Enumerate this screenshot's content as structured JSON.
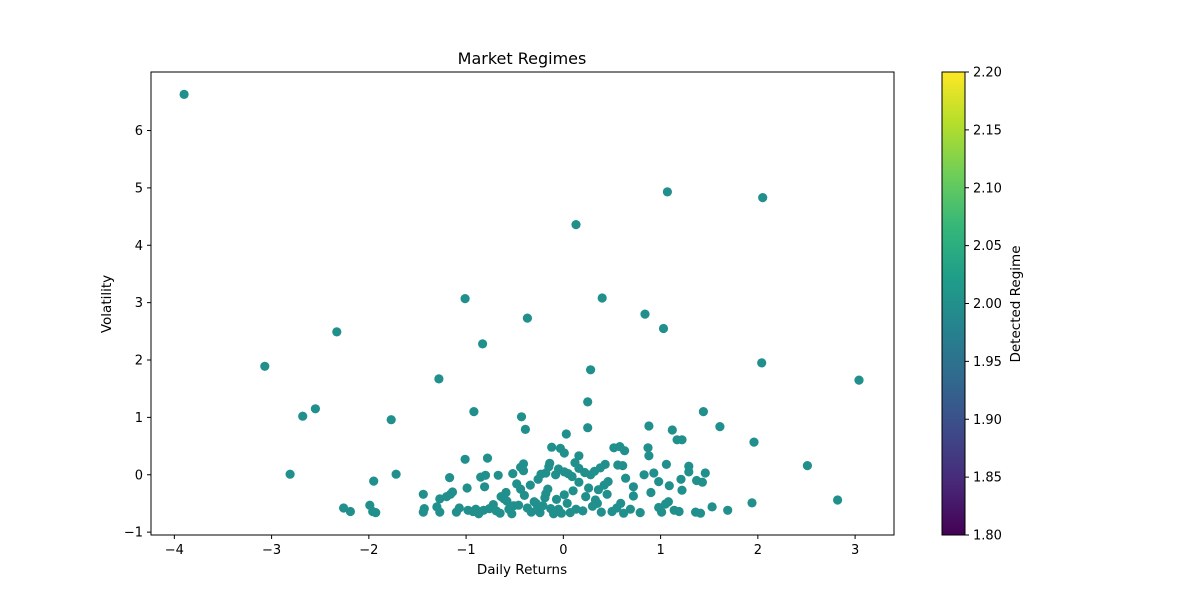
{
  "chart_data": {
    "type": "scatter",
    "title": "Market Regimes",
    "xlabel": "Daily Returns",
    "ylabel": "Volatility",
    "xlim": [
      -4.24,
      3.4
    ],
    "ylim": [
      -1.05,
      7.02
    ],
    "xticks": [
      -4,
      -3,
      -2,
      -1,
      0,
      1,
      2,
      3
    ],
    "xtick_labels": [
      "−4",
      "−3",
      "−2",
      "−1",
      "0",
      "1",
      "2",
      "3"
    ],
    "yticks": [
      -1,
      0,
      1,
      2,
      3,
      4,
      5,
      6
    ],
    "ytick_labels": [
      "−1",
      "0",
      "1",
      "2",
      "3",
      "4",
      "5",
      "6"
    ],
    "grid": false,
    "point_color": "#21908d",
    "colorbar": {
      "label": "Detected Regime",
      "range": [
        1.8,
        2.2
      ],
      "ticks": [
        1.8,
        1.85,
        1.9,
        1.95,
        2.0,
        2.05,
        2.1,
        2.15,
        2.2
      ],
      "tick_labels": [
        "1.80",
        "1.85",
        "1.90",
        "1.95",
        "2.00",
        "2.05",
        "2.10",
        "2.15",
        "2.20"
      ],
      "colormap": "viridis",
      "stops": [
        "#440154",
        "#482878",
        "#3e4989",
        "#31688e",
        "#26828e",
        "#1f9e89",
        "#35b779",
        "#6ece58",
        "#b5de2b",
        "#fde725"
      ]
    },
    "points": [
      [
        -3.9,
        6.63
      ],
      [
        1.07,
        4.93
      ],
      [
        2.05,
        4.83
      ],
      [
        0.13,
        4.36
      ],
      [
        -1.01,
        3.07
      ],
      [
        0.4,
        3.08
      ],
      [
        0.84,
        2.8
      ],
      [
        -0.37,
        2.73
      ],
      [
        1.03,
        2.55
      ],
      [
        -2.33,
        2.49
      ],
      [
        -0.83,
        2.28
      ],
      [
        -3.07,
        1.89
      ],
      [
        2.04,
        1.95
      ],
      [
        0.28,
        1.83
      ],
      [
        -1.28,
        1.67
      ],
      [
        3.04,
        1.65
      ],
      [
        -2.55,
        1.15
      ],
      [
        -2.68,
        1.02
      ],
      [
        -1.77,
        0.96
      ],
      [
        -0.92,
        1.1
      ],
      [
        -0.43,
        1.01
      ],
      [
        1.44,
        1.1
      ],
      [
        0.25,
        1.27
      ],
      [
        -0.39,
        0.79
      ],
      [
        1.61,
        0.84
      ],
      [
        0.88,
        0.85
      ],
      [
        1.12,
        0.78
      ],
      [
        0.25,
        0.82
      ],
      [
        1.96,
        0.57
      ],
      [
        0.03,
        0.71
      ],
      [
        1.17,
        0.61
      ],
      [
        1.22,
        0.61
      ],
      [
        -0.12,
        0.48
      ],
      [
        -0.03,
        0.46
      ],
      [
        0.52,
        0.47
      ],
      [
        0.58,
        0.49
      ],
      [
        0.63,
        0.42
      ],
      [
        0.87,
        0.47
      ],
      [
        0.88,
        0.33
      ],
      [
        2.51,
        0.16
      ],
      [
        -1.01,
        0.27
      ],
      [
        -0.78,
        0.29
      ],
      [
        0.16,
        0.33
      ],
      [
        0.01,
        0.38
      ],
      [
        -2.81,
        0.01
      ],
      [
        -1.72,
        0.01
      ],
      [
        -1.95,
        -0.11
      ],
      [
        -0.99,
        -0.23
      ],
      [
        -1.17,
        -0.05
      ],
      [
        -0.85,
        -0.04
      ],
      [
        -0.8,
        -0.01
      ],
      [
        -0.81,
        -0.21
      ],
      [
        -0.67,
        -0.01
      ],
      [
        -0.52,
        0.02
      ],
      [
        -0.44,
        0.13
      ],
      [
        -0.41,
        0.07
      ],
      [
        -0.41,
        0.19
      ],
      [
        -0.26,
        -0.08
      ],
      [
        -0.23,
        0.01
      ],
      [
        -0.18,
        0.03
      ],
      [
        -0.15,
        0.14
      ],
      [
        -0.14,
        0.2
      ],
      [
        -0.08,
        0.0
      ],
      [
        -0.05,
        0.1
      ],
      [
        0.01,
        0.05
      ],
      [
        0.05,
        0.02
      ],
      [
        0.09,
        -0.03
      ],
      [
        0.12,
        0.21
      ],
      [
        0.16,
        0.11
      ],
      [
        0.22,
        0.04
      ],
      [
        0.28,
        0.0
      ],
      [
        0.32,
        0.06
      ],
      [
        0.38,
        0.12
      ],
      [
        0.43,
        0.18
      ],
      [
        0.46,
        -0.12
      ],
      [
        0.56,
        0.17
      ],
      [
        0.61,
        0.16
      ],
      [
        0.64,
        -0.06
      ],
      [
        0.72,
        -0.21
      ],
      [
        0.83,
        0.0
      ],
      [
        0.93,
        0.03
      ],
      [
        0.98,
        -0.12
      ],
      [
        1.06,
        0.18
      ],
      [
        1.09,
        -0.19
      ],
      [
        1.21,
        -0.08
      ],
      [
        1.29,
        0.15
      ],
      [
        1.29,
        0.05
      ],
      [
        1.43,
        -0.13
      ],
      [
        1.46,
        0.03
      ],
      [
        1.37,
        -0.1
      ],
      [
        -1.44,
        -0.34
      ],
      [
        -1.43,
        -0.59
      ],
      [
        -1.44,
        -0.65
      ],
      [
        -1.3,
        -0.56
      ],
      [
        -1.27,
        -0.65
      ],
      [
        -1.27,
        -0.42
      ],
      [
        -1.2,
        -0.38
      ],
      [
        -1.16,
        -0.34
      ],
      [
        -1.14,
        -0.3
      ],
      [
        -1.1,
        -0.65
      ],
      [
        -1.07,
        -0.58
      ],
      [
        -0.98,
        -0.62
      ],
      [
        -0.93,
        -0.64
      ],
      [
        -0.9,
        -0.6
      ],
      [
        -0.87,
        -0.68
      ],
      [
        -0.82,
        -0.62
      ],
      [
        -0.76,
        -0.59
      ],
      [
        -0.69,
        -0.63
      ],
      [
        -0.65,
        -0.67
      ],
      [
        -0.61,
        -0.42
      ],
      [
        -0.59,
        -0.31
      ],
      [
        -0.56,
        -0.6
      ],
      [
        -0.53,
        -0.68
      ],
      [
        -0.51,
        -0.54
      ],
      [
        -0.48,
        -0.16
      ],
      [
        -0.44,
        -0.25
      ],
      [
        -0.4,
        -0.36
      ],
      [
        -0.37,
        -0.58
      ],
      [
        -0.33,
        -0.65
      ],
      [
        -0.3,
        -0.47
      ],
      [
        -0.27,
        -0.61
      ],
      [
        -0.24,
        -0.66
      ],
      [
        -0.21,
        -0.54
      ],
      [
        -0.18,
        -0.33
      ],
      [
        -0.16,
        -0.25
      ],
      [
        -0.13,
        -0.59
      ],
      [
        -0.1,
        -0.68
      ],
      [
        -0.07,
        -0.43
      ],
      [
        -0.05,
        -0.6
      ],
      [
        -0.02,
        -0.67
      ],
      [
        0.01,
        -0.35
      ],
      [
        0.04,
        -0.5
      ],
      [
        0.07,
        -0.66
      ],
      [
        0.1,
        -0.28
      ],
      [
        0.13,
        -0.6
      ],
      [
        0.16,
        -0.13
      ],
      [
        0.2,
        -0.63
      ],
      [
        0.23,
        -0.38
      ],
      [
        0.26,
        -0.23
      ],
      [
        0.3,
        -0.55
      ],
      [
        0.33,
        -0.44
      ],
      [
        0.36,
        -0.26
      ],
      [
        0.39,
        -0.65
      ],
      [
        0.42,
        -0.18
      ],
      [
        0.45,
        -0.34
      ],
      [
        0.5,
        -0.64
      ],
      [
        0.55,
        -0.58
      ],
      [
        0.59,
        -0.5
      ],
      [
        0.62,
        -0.67
      ],
      [
        0.69,
        -0.6
      ],
      [
        0.72,
        -0.37
      ],
      [
        0.79,
        -0.66
      ],
      [
        0.9,
        -0.31
      ],
      [
        0.98,
        -0.57
      ],
      [
        1.01,
        -0.65
      ],
      [
        1.05,
        -0.51
      ],
      [
        1.08,
        -0.47
      ],
      [
        1.14,
        -0.62
      ],
      [
        1.19,
        -0.64
      ],
      [
        1.22,
        -0.27
      ],
      [
        1.36,
        -0.65
      ],
      [
        1.41,
        -0.67
      ],
      [
        1.53,
        -0.56
      ],
      [
        1.69,
        -0.62
      ],
      [
        1.94,
        -0.49
      ],
      [
        2.82,
        -0.44
      ],
      [
        -2.26,
        -0.58
      ],
      [
        -2.19,
        -0.64
      ],
      [
        -1.99,
        -0.53
      ],
      [
        -1.96,
        -0.64
      ],
      [
        -1.93,
        -0.66
      ],
      [
        -0.72,
        -0.52
      ],
      [
        -0.64,
        -0.38
      ],
      [
        -0.58,
        -0.46
      ],
      [
        -0.46,
        -0.53
      ],
      [
        -0.34,
        -0.18
      ],
      [
        -0.28,
        -0.5
      ],
      [
        -0.19,
        -0.4
      ],
      [
        0.35,
        -0.5
      ]
    ]
  }
}
